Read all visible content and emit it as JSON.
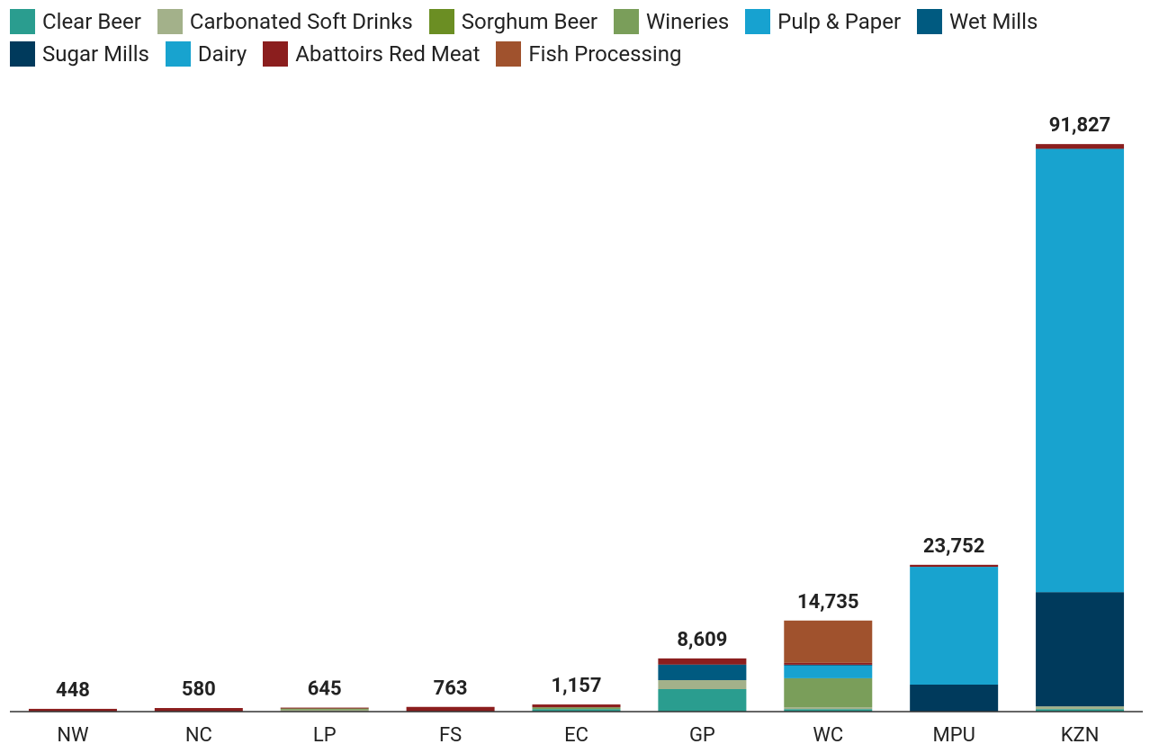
{
  "chart_data": {
    "type": "stacked_bar",
    "categories": [
      "NW",
      "NC",
      "LP",
      "FS",
      "EC",
      "GP",
      "WC",
      "MPU",
      "KZN"
    ],
    "series": [
      {
        "name": "Clear Beer",
        "color": "#2a9d8f",
        "values": [
          0,
          0,
          0,
          0,
          400,
          3640,
          400,
          0,
          400
        ]
      },
      {
        "name": "Carbonated Soft Drinks",
        "color": "#a3b18a",
        "values": [
          0,
          0,
          300,
          0,
          0,
          1455,
          300,
          0,
          450
        ]
      },
      {
        "name": "Sorghum Beer",
        "color": "#6b8e23",
        "values": [
          0,
          0,
          0,
          0,
          0,
          0,
          0,
          0,
          0
        ]
      },
      {
        "name": "Wineries",
        "color": "#7a9e5a",
        "values": [
          0,
          0,
          200,
          0,
          300,
          0,
          4700,
          0,
          0
        ]
      },
      {
        "name": "Pulp & Paper",
        "color": "#17a2d0",
        "values": [
          0,
          0,
          0,
          0,
          0,
          0,
          2040,
          0,
          0
        ]
      },
      {
        "name": "Wet Mills",
        "color": "#005a80",
        "values": [
          0,
          0,
          0,
          0,
          0,
          2514,
          150,
          0,
          0
        ]
      },
      {
        "name": "Sugar Mills",
        "color": "#003a5c",
        "values": [
          0,
          0,
          0,
          0,
          0,
          0,
          0,
          4365,
          18480
        ]
      },
      {
        "name": "Dairy",
        "color": "#18a3cf",
        "values": [
          0,
          0,
          0,
          0,
          0,
          0,
          0,
          19060,
          71730
        ]
      },
      {
        "name": "Abattoirs Red Meat",
        "color": "#8b1e1e",
        "values": [
          448,
          580,
          145,
          763,
          457,
          1000,
          300,
          327,
          767
        ]
      },
      {
        "name": "Fish Processing",
        "color": "#a0522d",
        "values": [
          0,
          0,
          0,
          0,
          0,
          0,
          6845,
          0,
          0
        ]
      }
    ],
    "total_labels": [
      "448",
      "580",
      "645",
      "763",
      "1,157",
      "8,609",
      "14,735",
      "23,752",
      "91,827"
    ],
    "ylim": [
      0,
      100000
    ]
  }
}
